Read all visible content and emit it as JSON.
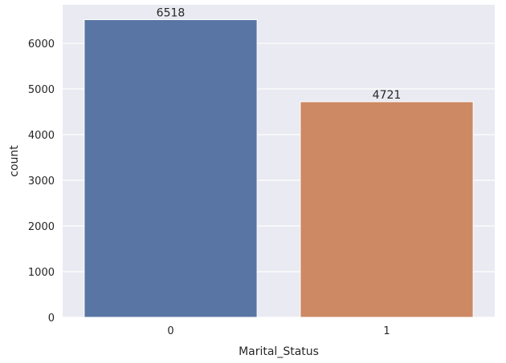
{
  "chart_data": {
    "type": "bar",
    "xlabel": "Marital_Status",
    "ylabel": "count",
    "categories": [
      "0",
      "1"
    ],
    "values": [
      6518,
      4721
    ],
    "data_labels": [
      "6518",
      "4721"
    ],
    "ylim": [
      0,
      6843
    ],
    "yticks": [
      0,
      1000,
      2000,
      3000,
      4000,
      5000,
      6000
    ],
    "ytick_labels": [
      "0",
      "1000",
      "2000",
      "3000",
      "4000",
      "5000",
      "6000"
    ],
    "grid": true,
    "colors": [
      "#5975a4",
      "#cc8963"
    ],
    "background": "#eaeaf2",
    "grid_color": "#ffffff"
  }
}
